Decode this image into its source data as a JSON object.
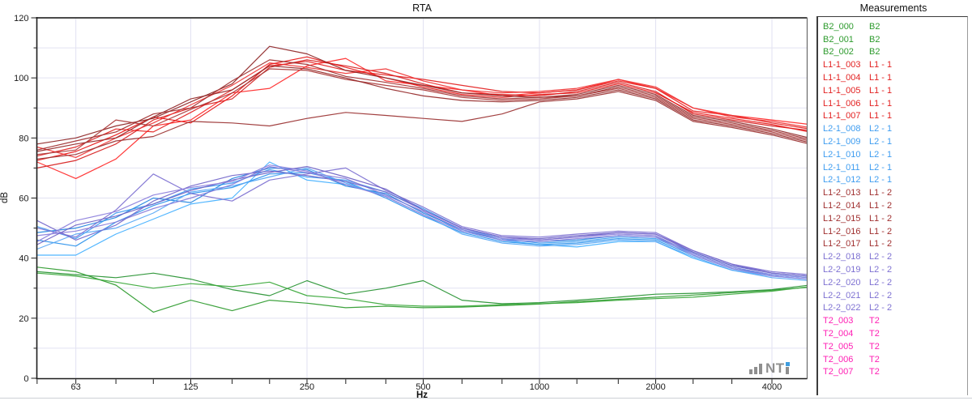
{
  "header": {
    "title": "RTA"
  },
  "axis": {
    "x_label": "Hz",
    "y_label": "dB",
    "x_tick_labels": [
      "63",
      "125",
      "250",
      "500",
      "1000",
      "2000",
      "4000"
    ],
    "y_tick_labels": [
      "0",
      "20",
      "40",
      "60",
      "80",
      "100",
      "120"
    ]
  },
  "logo": {
    "text": "NT",
    "gray": "#8f8f8f",
    "blue": "#3f9ddf"
  },
  "colors": {
    "grid": "#e2e2f2",
    "axis": "#1c1c1c",
    "frame_top": "#4a4a4a",
    "frame_right": "#707070",
    "tick": "#1c1c1c"
  },
  "legend": {
    "header": "Measurements",
    "group_colors": {
      "B2": "#2e9b2e",
      "L1 - 1": "#e32222",
      "L2 - 1": "#3f9df0",
      "L1 - 2": "#a03030",
      "L2 - 2": "#7e71d2",
      "T2": "#ff1fb4"
    },
    "items": [
      {
        "name": "B2_000",
        "group": "B2"
      },
      {
        "name": "B2_001",
        "group": "B2"
      },
      {
        "name": "B2_002",
        "group": "B2"
      },
      {
        "name": "L1-1_003",
        "group": "L1 - 1"
      },
      {
        "name": "L1-1_004",
        "group": "L1 - 1"
      },
      {
        "name": "L1-1_005",
        "group": "L1 - 1"
      },
      {
        "name": "L1-1_006",
        "group": "L1 - 1"
      },
      {
        "name": "L1-1_007",
        "group": "L1 - 1"
      },
      {
        "name": "L2-1_008",
        "group": "L2 - 1"
      },
      {
        "name": "L2-1_009",
        "group": "L2 - 1"
      },
      {
        "name": "L2-1_010",
        "group": "L2 - 1"
      },
      {
        "name": "L2-1_011",
        "group": "L2 - 1"
      },
      {
        "name": "L2-1_012",
        "group": "L2 - 1"
      },
      {
        "name": "L1-2_013",
        "group": "L1 - 2"
      },
      {
        "name": "L1-2_014",
        "group": "L1 - 2"
      },
      {
        "name": "L1-2_015",
        "group": "L1 - 2"
      },
      {
        "name": "L1-2_016",
        "group": "L1 - 2"
      },
      {
        "name": "L1-2_017",
        "group": "L1 - 2"
      },
      {
        "name": "L2-2_018",
        "group": "L2 - 2"
      },
      {
        "name": "L2-2_019",
        "group": "L2 - 2"
      },
      {
        "name": "L2-2_020",
        "group": "L2 - 2"
      },
      {
        "name": "L2-2_021",
        "group": "L2 - 2"
      },
      {
        "name": "L2-2_022",
        "group": "L2 - 2"
      },
      {
        "name": "T2_003",
        "group": "T2"
      },
      {
        "name": "T2_004",
        "group": "T2"
      },
      {
        "name": "T2_005",
        "group": "T2"
      },
      {
        "name": "T2_006",
        "group": "T2"
      },
      {
        "name": "T2_007",
        "group": "T2"
      }
    ]
  },
  "chart_data": {
    "type": "line",
    "title": "RTA",
    "xlabel": "Hz",
    "ylabel": "dB",
    "x_scale": "log",
    "ylim": [
      0,
      120
    ],
    "y_grid_step": 10,
    "x_gridlines": [
      63,
      125,
      250,
      500,
      1000,
      2000,
      4000
    ],
    "x_bands": [
      50,
      63,
      80,
      100,
      125,
      160,
      200,
      250,
      315,
      400,
      500,
      630,
      800,
      1000,
      1250,
      1600,
      2000,
      2500,
      3150,
      4000,
      5000
    ],
    "series": [
      {
        "name": "B2_000",
        "group": "B2",
        "color": "#2e9b2e",
        "values": [
          37,
          35.5,
          31,
          22,
          26,
          22.5,
          26,
          25,
          23.5,
          24,
          23.5,
          23.7,
          24.2,
          24.7,
          25.5,
          26.3,
          27,
          27.7,
          28.5,
          29.3,
          30.3
        ]
      },
      {
        "name": "B2_001",
        "group": "B2",
        "color": "#279232",
        "values": [
          35.5,
          34.5,
          33.5,
          35,
          33,
          29.5,
          27.5,
          32.5,
          28,
          30,
          32.5,
          26,
          24.8,
          25.2,
          26,
          27,
          28,
          28.3,
          28.8,
          29.5,
          31
        ]
      },
      {
        "name": "B2_002",
        "group": "B2",
        "color": "#3aa83a",
        "values": [
          35,
          34,
          32,
          30,
          31.5,
          30.5,
          32,
          27.5,
          26.5,
          24.5,
          24,
          24,
          24.5,
          24.8,
          25.2,
          26,
          26.5,
          27,
          28,
          29,
          30.5
        ]
      },
      {
        "name": "L1-1_003",
        "group": "L1 - 1",
        "color": "#ff2a2a",
        "values": [
          72,
          66.5,
          73,
          84,
          86,
          95,
          96.5,
          104,
          106.5,
          99,
          97.5,
          96,
          94,
          95,
          96,
          99.5,
          96.5,
          90,
          87.5,
          86,
          84.5
        ]
      },
      {
        "name": "L1-1_004",
        "group": "L1 - 1",
        "color": "#e32222",
        "values": [
          74,
          77,
          83,
          82,
          88.5,
          96,
          104,
          105.5,
          102.5,
          101,
          99.5,
          97.5,
          95.5,
          95,
          96,
          99,
          96.5,
          89,
          87.5,
          85,
          83
        ]
      },
      {
        "name": "L1-1_005",
        "group": "L1 - 1",
        "color": "#d61f1f",
        "values": [
          70,
          72.5,
          78,
          86,
          90,
          93,
          103.5,
          106,
          104,
          101.5,
          98,
          95,
          94.5,
          94,
          95.5,
          98.5,
          95.5,
          88,
          86,
          84,
          82.5
        ]
      },
      {
        "name": "L1-1_006",
        "group": "L1 - 1",
        "color": "#f03535",
        "values": [
          77,
          73.5,
          80,
          85,
          91,
          97.5,
          105,
          103.5,
          101.5,
          103,
          99,
          96,
          95,
          95.5,
          96.5,
          99.5,
          97,
          90,
          87,
          85.5,
          83.5
        ]
      },
      {
        "name": "L1-1_007",
        "group": "L1 - 1",
        "color": "#e81717",
        "values": [
          72.5,
          75.5,
          81,
          87,
          85,
          94,
          104.5,
          107,
          103.5,
          100,
          97,
          94.5,
          93.5,
          94.5,
          95,
          98,
          95,
          88.5,
          86.5,
          84.5,
          82
        ]
      },
      {
        "name": "L2-1_008",
        "group": "L2 - 1",
        "color": "#45b0ff",
        "values": [
          41,
          41,
          48,
          53,
          58,
          60,
          72,
          66,
          64.5,
          61,
          55.5,
          49,
          46,
          44.5,
          43.7,
          45.5,
          45.5,
          40,
          36,
          34,
          33
        ]
      },
      {
        "name": "L2-1_009",
        "group": "L2 - 1",
        "color": "#2e93ec",
        "values": [
          46,
          44,
          52,
          57.5,
          61.5,
          63.5,
          68,
          68.5,
          65.5,
          60,
          54,
          48.5,
          45.5,
          44.5,
          45,
          46.5,
          46,
          41,
          36.5,
          34.5,
          33.5
        ]
      },
      {
        "name": "L2-1_010",
        "group": "L2 - 1",
        "color": "#3f9df0",
        "values": [
          50.5,
          46.5,
          55,
          58,
          63,
          65,
          69.5,
          67,
          66,
          62,
          56.5,
          50,
          46.5,
          45,
          45.5,
          47,
          46.5,
          41.5,
          37,
          34.5,
          33.5
        ]
      },
      {
        "name": "L2-1_011",
        "group": "L2 - 1",
        "color": "#2287e0",
        "values": [
          48.5,
          50,
          53.5,
          60,
          58.5,
          66.5,
          70,
          69.5,
          64,
          61.5,
          55,
          49.5,
          46,
          45.5,
          46,
          47.5,
          47,
          42,
          37.5,
          35,
          34
        ]
      },
      {
        "name": "L2-1_012",
        "group": "L2 - 1",
        "color": "#58a8f5",
        "values": [
          43,
          48,
          50,
          55,
          62,
          64,
          67,
          70,
          65,
          60.5,
          54.5,
          48,
          45,
          44,
          44.5,
          46,
          45.5,
          40.5,
          36,
          33.5,
          32.5
        ]
      },
      {
        "name": "L1-2_013",
        "group": "L1 - 2",
        "color": "#8f2727",
        "values": [
          78,
          80,
          84,
          86.5,
          92,
          98,
          110.5,
          108,
          102.5,
          100,
          97.5,
          95,
          94,
          93.5,
          94.5,
          97.5,
          94.5,
          87.5,
          85.5,
          83,
          80
        ]
      },
      {
        "name": "L1-2_014",
        "group": "L1 - 2",
        "color": "#a03030",
        "values": [
          76,
          79,
          82,
          88,
          90,
          99,
          106,
          104.5,
          100.5,
          98.5,
          96.5,
          94,
          93,
          93.5,
          94,
          97,
          94,
          87,
          85,
          82.5,
          79.5
        ]
      },
      {
        "name": "L1-2_015",
        "group": "L1 - 2",
        "color": "#aa3939",
        "values": [
          74.5,
          76,
          86,
          84,
          89.5,
          95,
          103,
          102.5,
          99.5,
          97.5,
          96,
          93.5,
          92.5,
          93,
          94,
          96.5,
          93.5,
          86.5,
          84.5,
          82,
          79
        ]
      },
      {
        "name": "L1-2_016",
        "group": "L1 - 2",
        "color": "#962b2b",
        "values": [
          75.5,
          78,
          80,
          87,
          93,
          96,
          104,
          103,
          100,
          96.5,
          94,
          92.5,
          92,
          92.5,
          93.5,
          96,
          93,
          86,
          84,
          81.5,
          78.5
        ]
      },
      {
        "name": "L1-2_017",
        "group": "L1 - 2",
        "color": "#9b3333",
        "values": [
          73,
          74.5,
          79,
          80.5,
          85.5,
          85,
          84,
          86.5,
          88.5,
          87.5,
          86.5,
          85.5,
          88,
          92,
          93,
          95.5,
          92.5,
          85.5,
          83.5,
          81,
          78
        ]
      },
      {
        "name": "L2-2_018",
        "group": "L2 - 2",
        "color": "#7e71d2",
        "values": [
          50,
          47,
          56,
          68,
          61.5,
          59,
          66,
          68,
          70,
          62.5,
          57,
          50.5,
          47.5,
          47,
          48,
          49,
          48.5,
          42.5,
          38,
          35.5,
          34.5
        ]
      },
      {
        "name": "L2-2_019",
        "group": "L2 - 2",
        "color": "#6f63c6",
        "values": [
          44.5,
          51,
          54,
          58,
          62.5,
          66,
          68.5,
          70.5,
          67,
          63,
          56,
          50,
          47,
          46.5,
          47.5,
          48.5,
          48,
          42,
          37.5,
          35,
          34
        ]
      },
      {
        "name": "L2-2_020",
        "group": "L2 - 2",
        "color": "#8a7eda",
        "values": [
          47.5,
          49,
          52,
          56.5,
          60,
          64.5,
          70.5,
          68.5,
          66.5,
          61,
          55.5,
          49.5,
          46.5,
          46,
          47,
          48,
          47.5,
          41.5,
          37,
          34.5,
          33.5
        ]
      },
      {
        "name": "L2-2_021",
        "group": "L2 - 2",
        "color": "#7568cb",
        "values": [
          52.5,
          46,
          51,
          59,
          64,
          67.5,
          69,
          67.5,
          65.5,
          62,
          56,
          50,
          47,
          46,
          47,
          48.5,
          48,
          42.5,
          38,
          35,
          34
        ]
      },
      {
        "name": "L2-2_022",
        "group": "L2 - 2",
        "color": "#8d80dd",
        "values": [
          45.5,
          52.5,
          55.5,
          61,
          63.5,
          65.5,
          71,
          69,
          64.5,
          60.5,
          54.5,
          49,
          46,
          45.5,
          46.5,
          47.5,
          47,
          41,
          36.5,
          34,
          33
        ]
      }
    ]
  }
}
